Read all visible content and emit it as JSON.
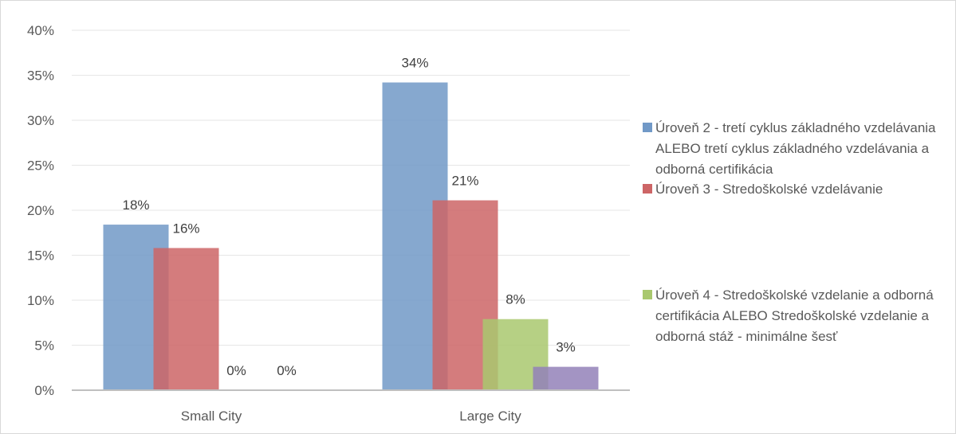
{
  "chart_data": {
    "type": "bar",
    "categories": [
      "Small City",
      "Large City"
    ],
    "ylim": [
      0,
      0.4
    ],
    "yticks": [
      "0%",
      "5%",
      "10%",
      "15%",
      "20%",
      "25%",
      "30%",
      "35%",
      "40%"
    ],
    "grid": true,
    "legend_position": "right",
    "series": [
      {
        "name": "Úroveň 2 - tretí cyklus základného vzdelávania ALEBO tretí cyklus základného vzdelávania a odborná certifikácia",
        "color": "#7199c7",
        "values": [
          0.184,
          0.342
        ],
        "labels": [
          "18%",
          "34%"
        ]
      },
      {
        "name": "Úroveň 3 - Stredoškolské vzdelávanie",
        "color": "#cd6566",
        "values": [
          0.158,
          0.211
        ],
        "labels": [
          "16%",
          "21%"
        ]
      },
      {
        "name": "Úroveň 4 - Stredoškolské vzdelanie a odborná certifikácia ALEBO Stredoškolské vzdelanie a odborná stáž - minimálne šesť",
        "color": "#a9c86e",
        "values": [
          0,
          0.079
        ],
        "labels": [
          "0%",
          "8%"
        ]
      },
      {
        "name": "",
        "color": "#9381b8",
        "values": [
          0,
          0.026
        ],
        "labels": [
          "0%",
          "3%"
        ]
      }
    ]
  }
}
